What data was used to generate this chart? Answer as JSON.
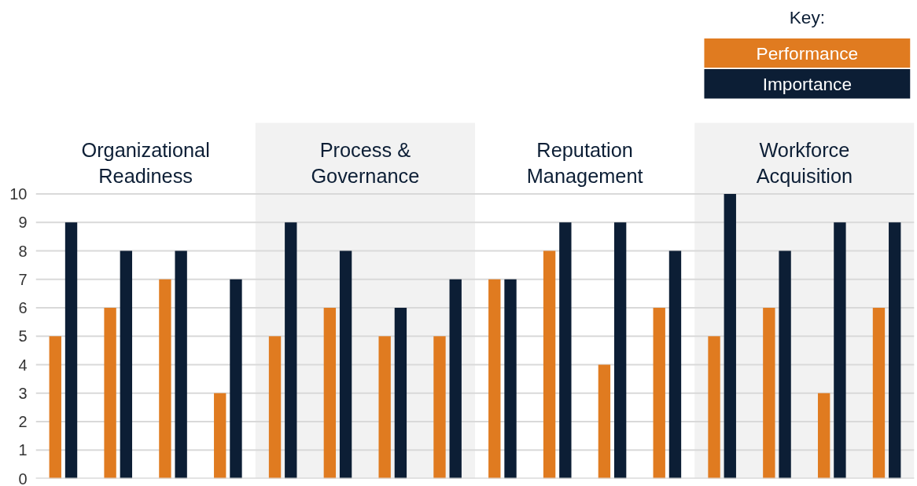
{
  "chart_data": {
    "type": "bar",
    "categories": [
      null,
      null,
      null,
      null,
      null,
      null,
      null,
      null,
      null,
      null,
      null,
      null,
      null,
      null,
      null,
      null
    ],
    "series": [
      {
        "name": "Performance",
        "color": "#e07b20",
        "values": [
          5,
          6,
          7,
          3,
          5,
          6,
          5,
          5,
          7,
          8,
          4,
          6,
          5,
          6,
          3,
          6
        ]
      },
      {
        "name": "Importance",
        "color": "#0c1e35",
        "values": [
          9,
          8,
          8,
          7,
          9,
          8,
          6,
          7,
          7,
          9,
          9,
          8,
          10,
          8,
          9,
          9
        ]
      }
    ],
    "ylim": [
      0,
      10
    ],
    "yticks": [
      0,
      1,
      2,
      3,
      4,
      5,
      6,
      7,
      8,
      9,
      10
    ],
    "grid": "y",
    "tick_labels": "y",
    "legend": "top right",
    "legend_title": "Key:",
    "annotations": [
      "Organizational Readiness",
      "Process & Governance",
      "Reputation Management",
      "Workforce Acquisition"
    ]
  }
}
